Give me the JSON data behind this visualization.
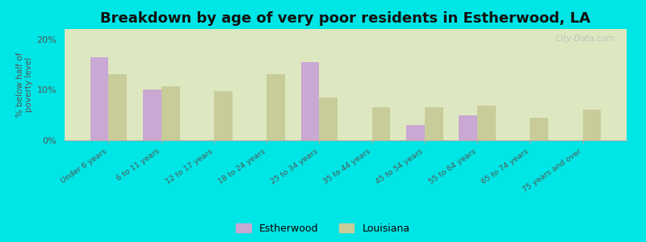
{
  "title": "Breakdown by age of very poor residents in Estherwood, LA",
  "ylabel": "% below half of\npoverty level",
  "categories": [
    "Under 6 years",
    "6 to 11 years",
    "12 to 17 years",
    "18 to 24 years",
    "25 to 34 years",
    "35 to 44 years",
    "45 to 54 years",
    "55 to 64 years",
    "65 to 74 years",
    "75 years and over"
  ],
  "estherwood": [
    16.5,
    10.0,
    0.0,
    0.0,
    15.5,
    0.0,
    3.0,
    5.0,
    0.0,
    0.0
  ],
  "louisiana": [
    13.0,
    10.7,
    9.8,
    13.0,
    8.5,
    6.5,
    6.5,
    6.8,
    4.5,
    6.0
  ],
  "estherwood_color": "#c9a8d4",
  "louisiana_color": "#c8cc99",
  "background_outer": "#00e5e5",
  "background_plot": "#dde8c0",
  "ylim": [
    0,
    22
  ],
  "yticks": [
    0,
    10,
    20
  ],
  "ytick_labels": [
    "0%",
    "10%",
    "20%"
  ],
  "title_fontsize": 13,
  "legend_labels": [
    "Estherwood",
    "Louisiana"
  ],
  "bar_width": 0.35
}
